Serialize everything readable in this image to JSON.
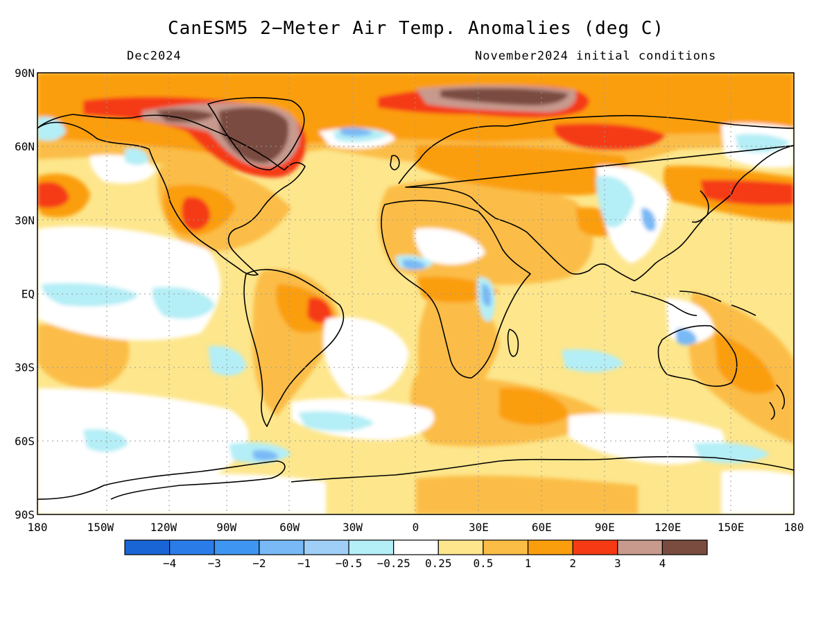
{
  "title": "CanESM5 2−Meter Air Temp. Anomalies (deg C)",
  "valid_month": "Dec2024",
  "init_conditions": "November2024 initial conditions",
  "lat_labels": [
    "90N",
    "60N",
    "30N",
    "EQ",
    "30S",
    "60S",
    "90S"
  ],
  "lon_labels": [
    "180",
    "150W",
    "120W",
    "90W",
    "60W",
    "30W",
    "0",
    "30E",
    "60E",
    "90E",
    "120E",
    "150E",
    "180"
  ],
  "colorbar": {
    "colors": [
      "#1a65d6",
      "#2a7de8",
      "#3f96f2",
      "#78b9f6",
      "#9fcff7",
      "#b4eef6",
      "#ffffff",
      "#fde68c",
      "#fbbd46",
      "#fb9e0e",
      "#f53a14",
      "#c89a8e",
      "#7a4c40"
    ],
    "labels": [
      "−4",
      "−3",
      "−2",
      "−1",
      "−0.5",
      "−0.25",
      "0.25",
      "0.5",
      "1",
      "2",
      "3",
      "4"
    ]
  },
  "map": {
    "projection": "cylindrical",
    "lon_range": [
      -180,
      180
    ],
    "lat_range": [
      -90,
      90
    ],
    "dominant_anomaly_color": "#fde68c",
    "palette": {
      "white": "#ffffff",
      "lightblue": "#b4eef6",
      "blue1": "#9fcff7",
      "blue2": "#78b9f6",
      "yellow": "#fde68c",
      "lightorange": "#fbbd46",
      "orange": "#fb9e0e",
      "red": "#f53a14",
      "rose": "#c89a8e",
      "brown": "#7a4c40"
    }
  }
}
